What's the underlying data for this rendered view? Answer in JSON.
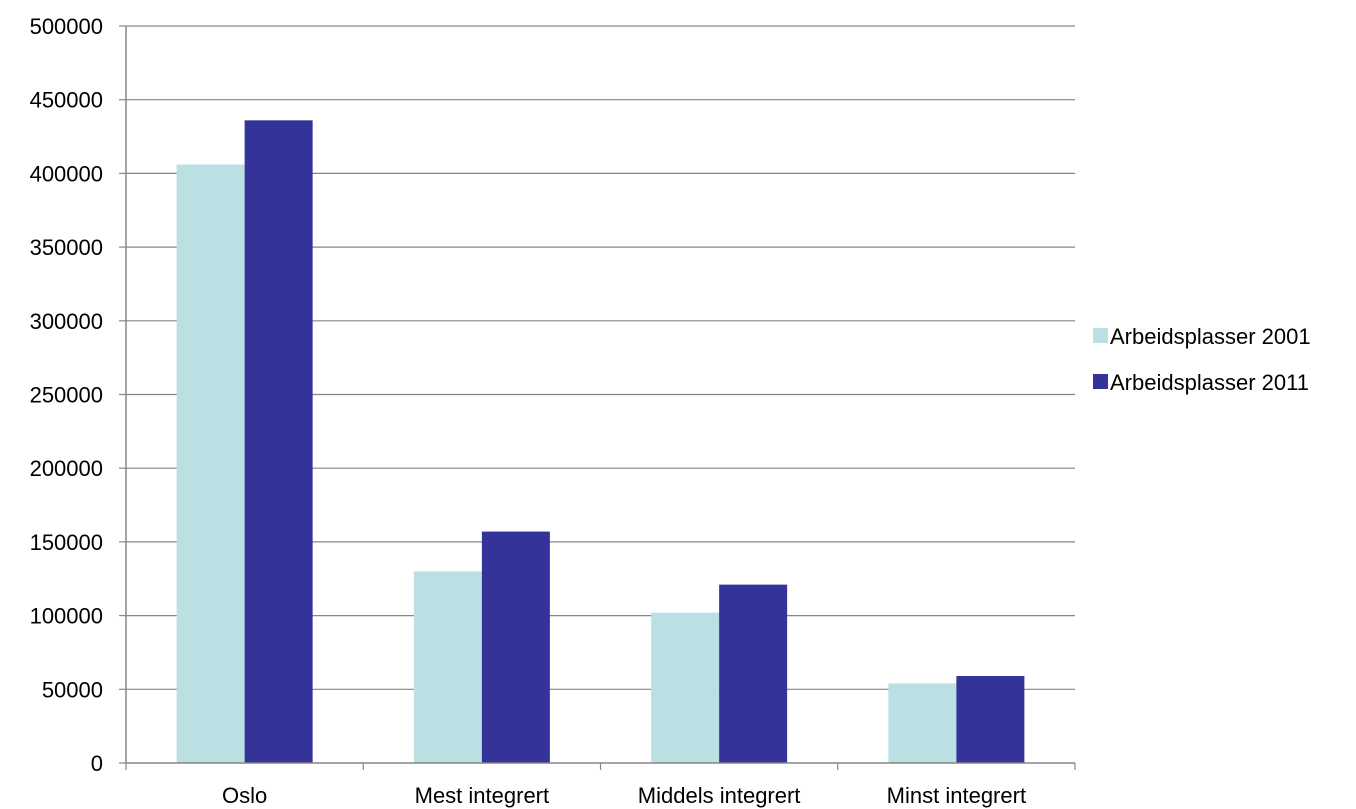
{
  "chart_data": {
    "type": "bar",
    "categories": [
      "Oslo",
      "Mest integrert",
      "Middels integrert",
      "Minst integrert"
    ],
    "series": [
      {
        "name": "Arbeidsplasser 2001",
        "color": "#BBE0E3",
        "values": [
          406000,
          130000,
          102000,
          54000
        ]
      },
      {
        "name": "Arbeidsplasser 2011",
        "color": "#333399",
        "values": [
          436000,
          157000,
          121000,
          59000
        ]
      }
    ],
    "ylim": [
      0,
      500000
    ],
    "yticks": [
      "0",
      "50000",
      "100000",
      "150000",
      "200000",
      "250000",
      "300000",
      "350000",
      "400000",
      "450000",
      "500000"
    ],
    "grid": true,
    "legend": "right",
    "title": "",
    "xlabel": "",
    "ylabel": ""
  }
}
